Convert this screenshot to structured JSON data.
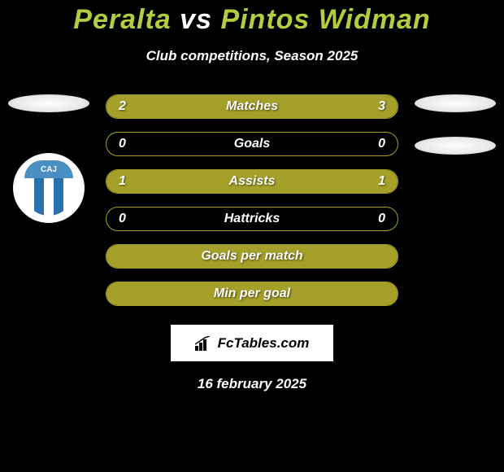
{
  "title": {
    "player1": "Peralta",
    "vs": "vs",
    "player2": "Pintos Widman"
  },
  "subtitle": "Club competitions, Season 2025",
  "left_avatar": {
    "has_logo": true,
    "logo_text": "CAJ",
    "logo_top_color": "#4a8fc4",
    "logo_stripe_colors": [
      "#ffffff",
      "#2870b0",
      "#ffffff",
      "#2870b0",
      "#ffffff"
    ]
  },
  "right_avatar": {
    "ellipse_count": 2
  },
  "stats": [
    {
      "label": "Matches",
      "left_value": "2",
      "right_value": "3",
      "left_fill_pct": 40,
      "right_fill_pct": 60,
      "show_values": true
    },
    {
      "label": "Goals",
      "left_value": "0",
      "right_value": "0",
      "left_fill_pct": 0,
      "right_fill_pct": 0,
      "show_values": true
    },
    {
      "label": "Assists",
      "left_value": "1",
      "right_value": "1",
      "left_fill_pct": 50,
      "right_fill_pct": 50,
      "show_values": true
    },
    {
      "label": "Hattricks",
      "left_value": "0",
      "right_value": "0",
      "left_fill_pct": 0,
      "right_fill_pct": 0,
      "show_values": true
    },
    {
      "label": "Goals per match",
      "left_value": "",
      "right_value": "",
      "left_fill_pct": 100,
      "right_fill_pct": 0,
      "show_values": false
    },
    {
      "label": "Min per goal",
      "left_value": "",
      "right_value": "",
      "left_fill_pct": 100,
      "right_fill_pct": 0,
      "show_values": false
    }
  ],
  "colors": {
    "background": "#000000",
    "accent": "#a5a029",
    "title_color": "#b6cb3f",
    "text": "#ffffff",
    "border": "#a5a029"
  },
  "brand": {
    "text": "FcTables.com"
  },
  "date": "16 february 2025"
}
